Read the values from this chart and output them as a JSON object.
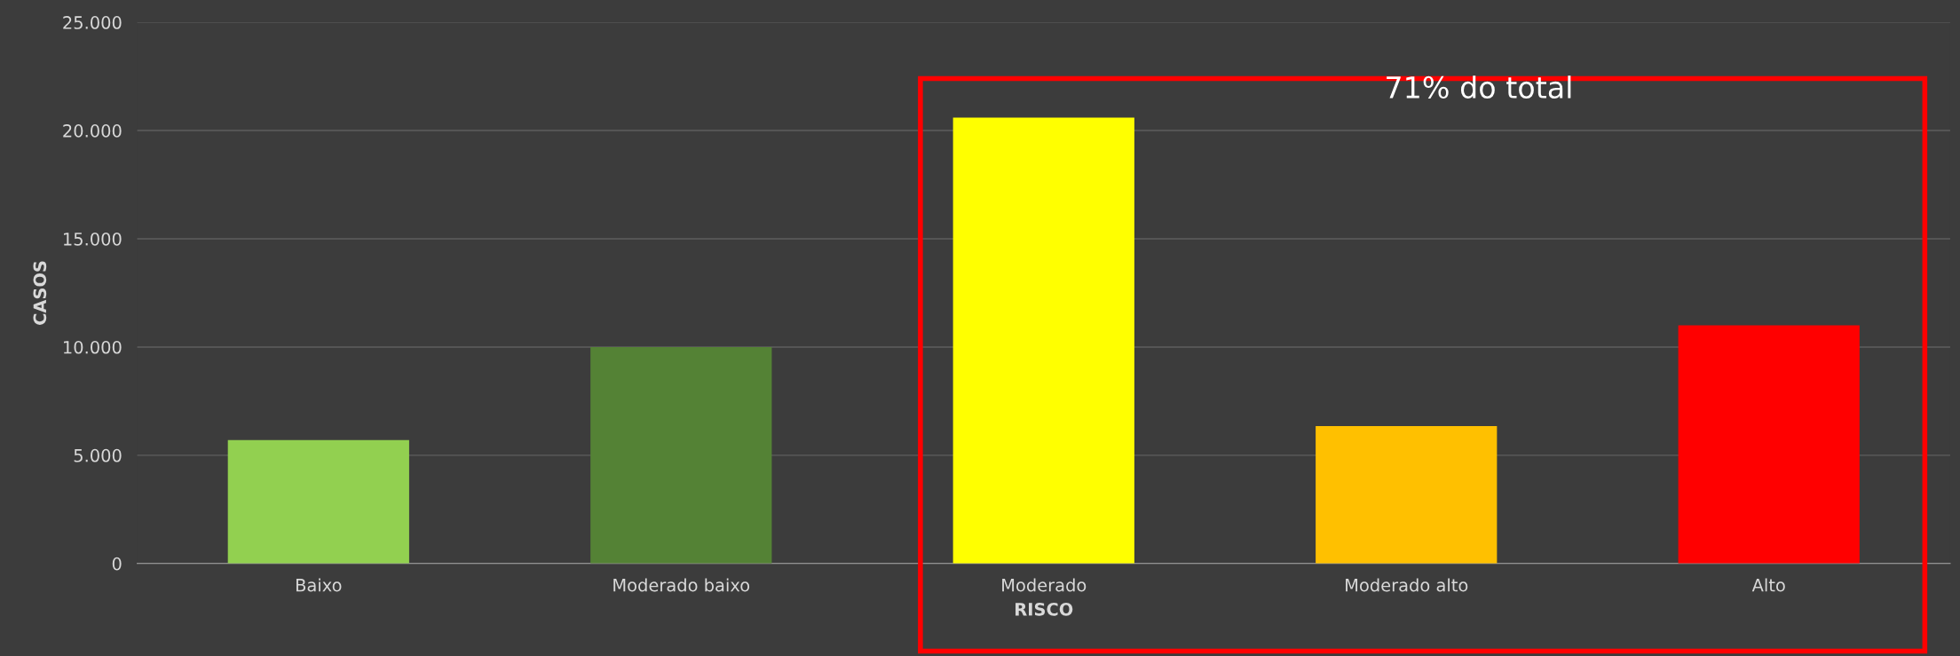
{
  "chart_data": {
    "type": "bar",
    "xlabel": "RISCO",
    "ylabel": "CASOS",
    "categories": [
      "Baixo",
      "Moderado baixo",
      "Moderado",
      "Moderado alto",
      "Alto"
    ],
    "values": [
      5700,
      10000,
      20600,
      6350,
      11000
    ],
    "colors": [
      "#92d050",
      "#548235",
      "#ffff00",
      "#ffc000",
      "#ff0000"
    ],
    "ylim": [
      0,
      25000
    ],
    "yticks": [
      {
        "value": 0,
        "label": "0"
      },
      {
        "value": 5000,
        "label": "5.000"
      },
      {
        "value": 10000,
        "label": "10.000"
      },
      {
        "value": 15000,
        "label": "15.000"
      },
      {
        "value": 20000,
        "label": "20.000"
      },
      {
        "value": 25000,
        "label": "25.000"
      }
    ],
    "grid": "y",
    "legend": false,
    "annotations": [
      "71% do total"
    ]
  }
}
